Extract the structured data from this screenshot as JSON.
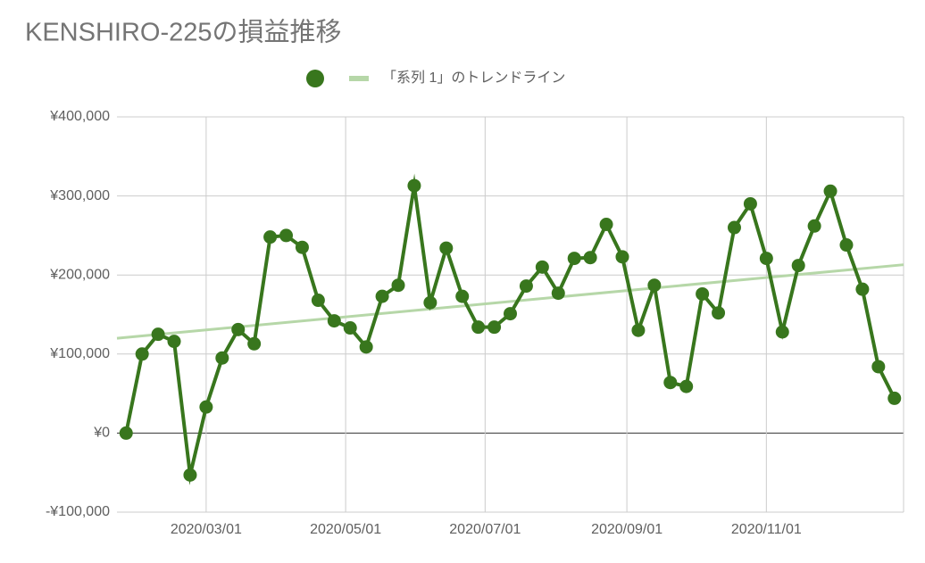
{
  "chart_data": {
    "type": "line",
    "title": "KENSHIRO-225の損益推移",
    "x": [
      "2020/01/26",
      "2020/02/02",
      "2020/02/09",
      "2020/02/16",
      "2020/02/23",
      "2020/03/01",
      "2020/03/08",
      "2020/03/15",
      "2020/03/22",
      "2020/03/29",
      "2020/04/05",
      "2020/04/12",
      "2020/04/19",
      "2020/04/26",
      "2020/05/03",
      "2020/05/10",
      "2020/05/17",
      "2020/05/24",
      "2020/05/31",
      "2020/06/07",
      "2020/06/14",
      "2020/06/21",
      "2020/06/28",
      "2020/07/05",
      "2020/07/12",
      "2020/07/19",
      "2020/07/26",
      "2020/08/02",
      "2020/08/09",
      "2020/08/16",
      "2020/08/23",
      "2020/08/30",
      "2020/09/06",
      "2020/09/13",
      "2020/09/20",
      "2020/09/27",
      "2020/10/04",
      "2020/10/11",
      "2020/10/18",
      "2020/10/25",
      "2020/11/01",
      "2020/11/08",
      "2020/11/15",
      "2020/11/22",
      "2020/11/29",
      "2020/12/06",
      "2020/12/13",
      "2020/12/20",
      "2020/12/27"
    ],
    "series": [
      {
        "color": "#38761d",
        "values": [
          0,
          100000,
          125000,
          116000,
          -53000,
          33000,
          95000,
          131000,
          113000,
          248000,
          250000,
          235000,
          168000,
          142000,
          133000,
          109000,
          173000,
          187000,
          313000,
          165000,
          234000,
          173000,
          134000,
          134000,
          151000,
          186000,
          210000,
          177000,
          221000,
          222000,
          264000,
          223000,
          130000,
          187000,
          64000,
          59000,
          176000,
          152000,
          260000,
          290000,
          221000,
          128000,
          212000,
          262000,
          306000,
          238000,
          182000,
          84000,
          44000
        ]
      }
    ],
    "trendline": {
      "name": "「系列 1」のトレンドライン",
      "color": "#b6d7a8",
      "start": 120000,
      "end": 213000
    },
    "xlim": [
      "2020/01/22",
      "2020/12/31"
    ],
    "xticks": [
      "2020/03/01",
      "2020/05/01",
      "2020/07/01",
      "2020/09/01",
      "2020/11/01"
    ],
    "ylim": [
      -100000,
      400000
    ],
    "yticks": [
      {
        "value": -100000,
        "label": "-¥100,000"
      },
      {
        "value": 0,
        "label": "¥0"
      },
      {
        "value": 100000,
        "label": "¥100,000"
      },
      {
        "value": 200000,
        "label": "¥200,000"
      },
      {
        "value": 300000,
        "label": "¥300,000"
      },
      {
        "value": 400000,
        "label": "¥400,000"
      }
    ],
    "grid": true
  }
}
